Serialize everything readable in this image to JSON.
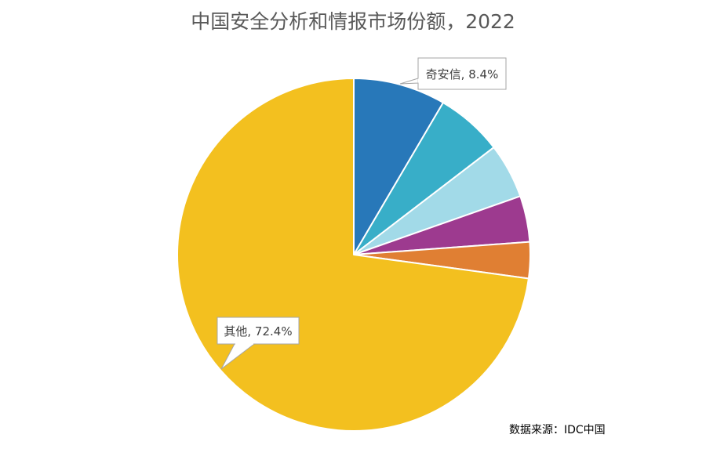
{
  "title": "中国安全分析和情报市场份额，2022",
  "source": "数据来源：IDC中国",
  "chart_data": {
    "type": "pie",
    "title": "中国安全分析和情报市场份额，2022",
    "start_angle_deg": 0,
    "direction": "clockwise",
    "legend": "none",
    "slices": [
      {
        "label": "奇安信",
        "value": 8.4,
        "color": "#2878B9",
        "data_label": "奇安信, 8.4%"
      },
      {
        "label": "",
        "value": 6.1,
        "color": "#38AEC8"
      },
      {
        "label": "",
        "value": 5.0,
        "color": "#A2DAE8"
      },
      {
        "label": "",
        "value": 4.2,
        "color": "#9D3A8F"
      },
      {
        "label": "",
        "value": 3.3,
        "color": "#E07F33"
      },
      {
        "label": "其他",
        "value": 72.4,
        "color": "#F3C01F",
        "data_label": "其他, 72.4%"
      }
    ]
  }
}
